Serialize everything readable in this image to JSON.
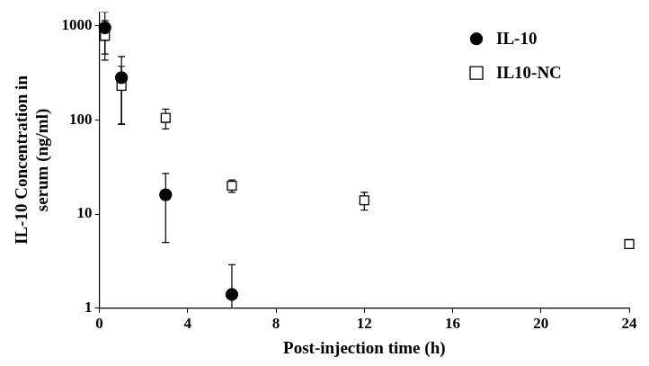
{
  "chart_data": {
    "type": "scatter",
    "x_label": "Post-injection time (h)",
    "y_label": [
      "IL-10 Concentration in",
      "serum (ng/ml)"
    ],
    "log": "y",
    "grid": false,
    "legend": "upper right",
    "xlim": [
      0,
      24
    ],
    "xticks": [
      0,
      4,
      8,
      12,
      16,
      20,
      24
    ],
    "ylim": [
      1,
      1400
    ],
    "yticks": [
      1,
      10,
      100,
      1000
    ],
    "series": [
      {
        "name": "IL-10",
        "color": "#000000",
        "marker": "circle",
        "x": [
          0.25,
          1,
          3,
          6
        ],
        "values": [
          950,
          280,
          16,
          1.4
        ],
        "errors": [
          450,
          190,
          11,
          1.5
        ]
      },
      {
        "name": "IL10-NC",
        "color": "#000000",
        "marker": "open-square",
        "x": [
          0.25,
          1,
          3,
          6,
          12,
          24
        ],
        "values": [
          780,
          230,
          105,
          20,
          14,
          4.8
        ],
        "errors": [
          350,
          140,
          25,
          3,
          3,
          0.5
        ]
      }
    ]
  }
}
